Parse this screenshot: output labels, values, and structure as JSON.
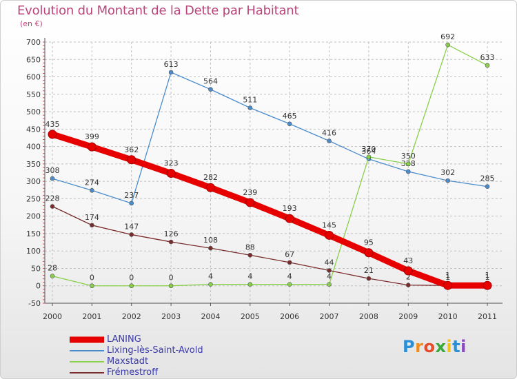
{
  "chart_data": {
    "type": "line",
    "title": "Evolution du Montant de la Dette par Habitant",
    "subtitle": "(en €)",
    "x": [
      "2000",
      "2001",
      "2002",
      "2003",
      "2004",
      "2005",
      "2006",
      "2007",
      "2008",
      "2009",
      "2010",
      "2011"
    ],
    "ylim": [
      -50,
      700
    ],
    "yticks": [
      -50,
      0,
      50,
      100,
      150,
      200,
      250,
      300,
      350,
      400,
      450,
      500,
      550,
      600,
      650,
      700
    ],
    "grid": true,
    "legend_placement": "bottom-left",
    "series": [
      {
        "name": "LANING",
        "color": "#e60000",
        "emphasis": true,
        "values": [
          435,
          399,
          362,
          323,
          282,
          239,
          193,
          145,
          95,
          43,
          1,
          1
        ]
      },
      {
        "name": "Lixing-lès-Saint-Avold",
        "color": "#4a8ccc",
        "values": [
          308,
          274,
          237,
          613,
          564,
          511,
          465,
          416,
          364,
          328,
          302,
          285
        ]
      },
      {
        "name": "Maxstadt",
        "color": "#88d04a",
        "values": [
          28,
          0,
          0,
          0,
          4,
          4,
          4,
          4,
          370,
          350,
          692,
          633
        ]
      },
      {
        "name": "Frémestroff",
        "color": "#7a2c2c",
        "values": [
          228,
          174,
          147,
          126,
          108,
          88,
          67,
          44,
          21,
          2,
          1,
          1
        ]
      }
    ]
  },
  "logo": {
    "text": "Proxiti",
    "letters": [
      "P",
      "r",
      "o",
      "x",
      "i",
      "t",
      "i"
    ],
    "colors": [
      "#2a8fd6",
      "#f28c1c",
      "#e84b2a",
      "#3aa83a",
      "#f2c21c",
      "#2a8fd6",
      "#8c4ac2"
    ]
  }
}
